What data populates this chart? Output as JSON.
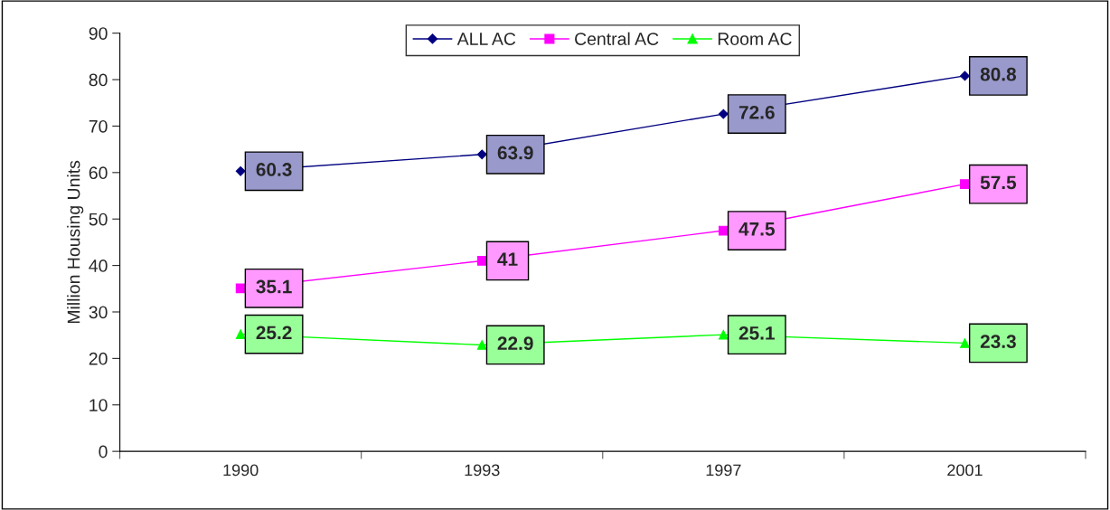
{
  "chart_data": {
    "type": "line",
    "ylabel": "Million Housing Units",
    "categories": [
      "1990",
      "1993",
      "1997",
      "2001"
    ],
    "series": [
      {
        "name": "ALL AC",
        "color": "#000080",
        "marker": "diamond",
        "values": [
          60.3,
          63.9,
          72.6,
          80.8
        ]
      },
      {
        "name": "Central AC",
        "color": "#ff00ff",
        "marker": "square",
        "values": [
          35.1,
          41,
          47.5,
          57.5
        ]
      },
      {
        "name": "Room AC",
        "color": "#00ff00",
        "marker": "triangle",
        "values": [
          25.2,
          22.9,
          25.1,
          23.3
        ]
      }
    ],
    "ylim": [
      0,
      90
    ],
    "yticks": [
      0,
      10,
      20,
      30,
      40,
      50,
      60,
      70,
      80,
      90
    ],
    "data_labels": true,
    "grid": false,
    "legend": "top"
  }
}
